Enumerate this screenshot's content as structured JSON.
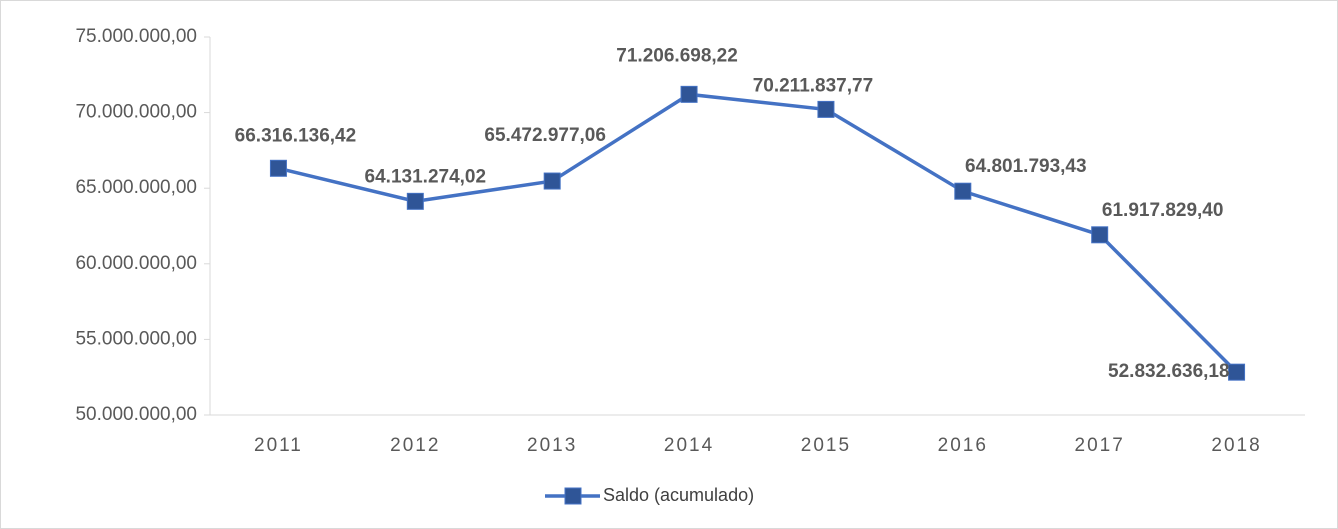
{
  "chart_data": {
    "type": "line",
    "categories": [
      "2011",
      "2012",
      "2013",
      "2014",
      "2015",
      "2016",
      "2017",
      "2018"
    ],
    "series": [
      {
        "name": "Saldo (acumulado)",
        "color": "#4472c4",
        "marker_color": "#2f5597",
        "values": [
          66316136.42,
          64131274.02,
          65472977.06,
          71206698.22,
          70211837.77,
          64801793.43,
          61917829.4,
          52832636.18
        ],
        "value_labels": [
          "66.316.136,42",
          "64.131.274,02",
          "65.472.977,06",
          "71.206.698,22",
          "70.211.837,77",
          "64.801.793,43",
          "61.917.829,40",
          "52.832.636,18"
        ]
      }
    ],
    "ylim": [
      50000000,
      75000000
    ],
    "yticks": [
      {
        "value": 50000000,
        "label": "50.000.000,00"
      },
      {
        "value": 55000000,
        "label": "55.000.000,00"
      },
      {
        "value": 60000000,
        "label": "60.000.000,00"
      },
      {
        "value": 65000000,
        "label": "65.000.000,00"
      },
      {
        "value": 70000000,
        "label": "70.000.000,00"
      },
      {
        "value": 75000000,
        "label": "75.000.000,00"
      }
    ],
    "grid": false,
    "legend": "bottom"
  }
}
